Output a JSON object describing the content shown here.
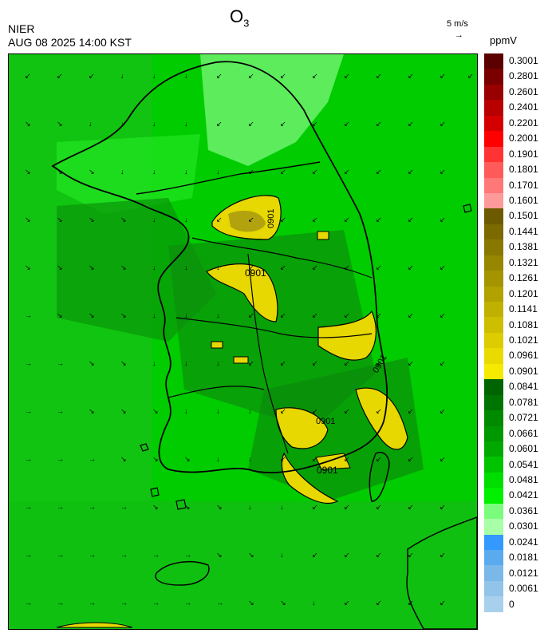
{
  "header": {
    "title_main": "O",
    "title_sub": "3",
    "agency": "NIER",
    "timestamp": "AUG 08 2025 14:00 KST",
    "wind_reference": "5 m/s",
    "wind_reference_arrow": "→",
    "unit": "ppmV"
  },
  "contour_labels": [
    "0901",
    "0901",
    "0901",
    "0901",
    "0901"
  ],
  "legend": {
    "labels": [
      "0.3001",
      "0.2801",
      "0.2601",
      "0.2401",
      "0.2201",
      "0.2001",
      "0.1901",
      "0.1801",
      "0.1701",
      "0.1601",
      "0.1501",
      "0.1441",
      "0.1381",
      "0.1321",
      "0.1261",
      "0.1201",
      "0.1141",
      "0.1081",
      "0.1021",
      "0.0961",
      "0.0901",
      "0.0841",
      "0.0781",
      "0.0721",
      "0.0661",
      "0.0601",
      "0.0541",
      "0.0481",
      "0.0421",
      "0.0361",
      "0.0301",
      "0.0241",
      "0.0181",
      "0.0121",
      "0.0061",
      "0"
    ],
    "colors": [
      "#5a0000",
      "#7a0000",
      "#990000",
      "#b80000",
      "#d40000",
      "#ff0000",
      "#ff3333",
      "#ff5a5a",
      "#ff7878",
      "#ff9a9a",
      "#6b5a00",
      "#7a6a00",
      "#887800",
      "#968600",
      "#a49400",
      "#b2a200",
      "#c0b000",
      "#cebe00",
      "#dccc00",
      "#eada00",
      "#f5ea00",
      "#006400",
      "#007400",
      "#008a00",
      "#009800",
      "#00a800",
      "#00c400",
      "#00de00",
      "#00f000",
      "#7cfc7c",
      "#a8ffa8",
      "#3399ff",
      "#5aaaee",
      "#7ab8ea",
      "#92c4ea",
      "#a8d0ec"
    ]
  }
}
